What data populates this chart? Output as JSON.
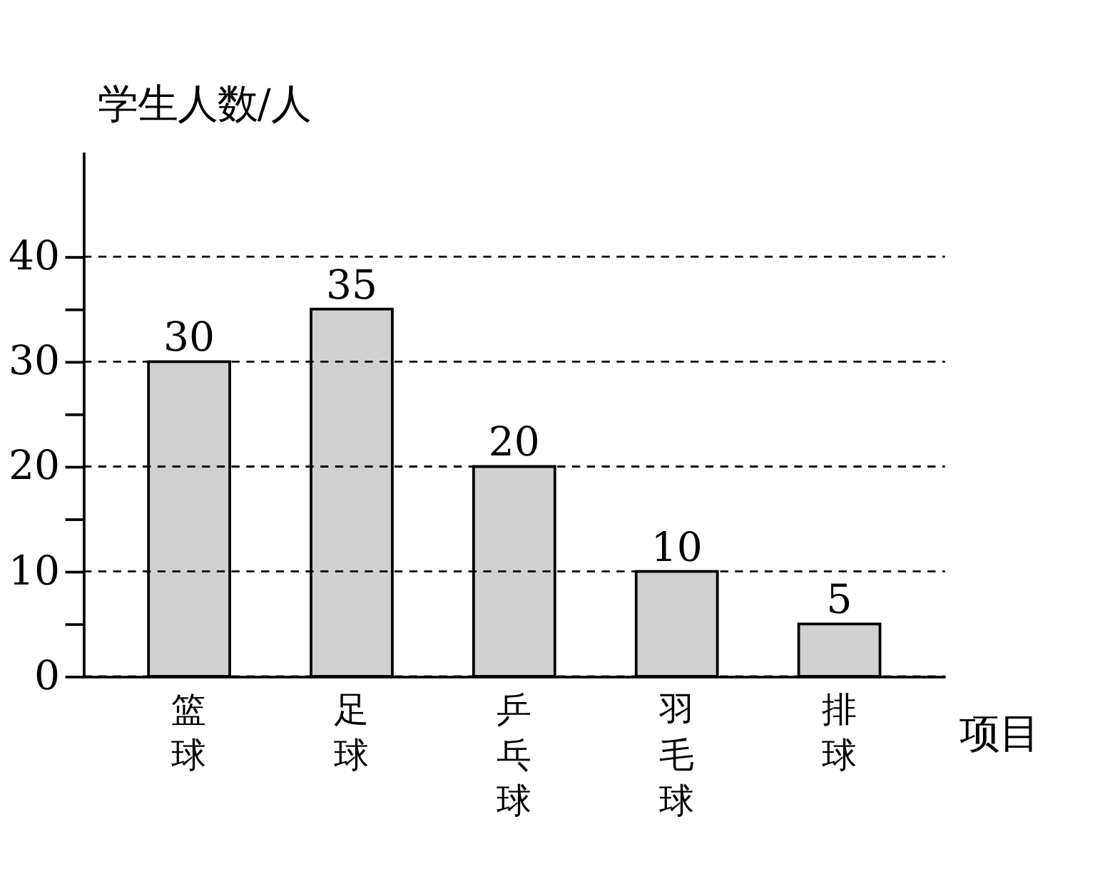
{
  "chart_data": {
    "type": "bar",
    "xlabel": "项目",
    "ylabel": "学生人数/人",
    "categories": [
      "篮球",
      "足球",
      "乒乓球",
      "羽毛球",
      "排球"
    ],
    "values": [
      30,
      35,
      20,
      10,
      5
    ],
    "color": "#d0d0d0",
    "ylim": [
      0,
      50
    ],
    "yticks": [
      0,
      {
        "value": 5,
        "label": null
      },
      10,
      {
        "value": 15,
        "label": null
      },
      20,
      {
        "value": 25,
        "label": null
      },
      30,
      {
        "value": 35,
        "label": null
      },
      40
    ],
    "grid": "y",
    "data_labels": true
  }
}
